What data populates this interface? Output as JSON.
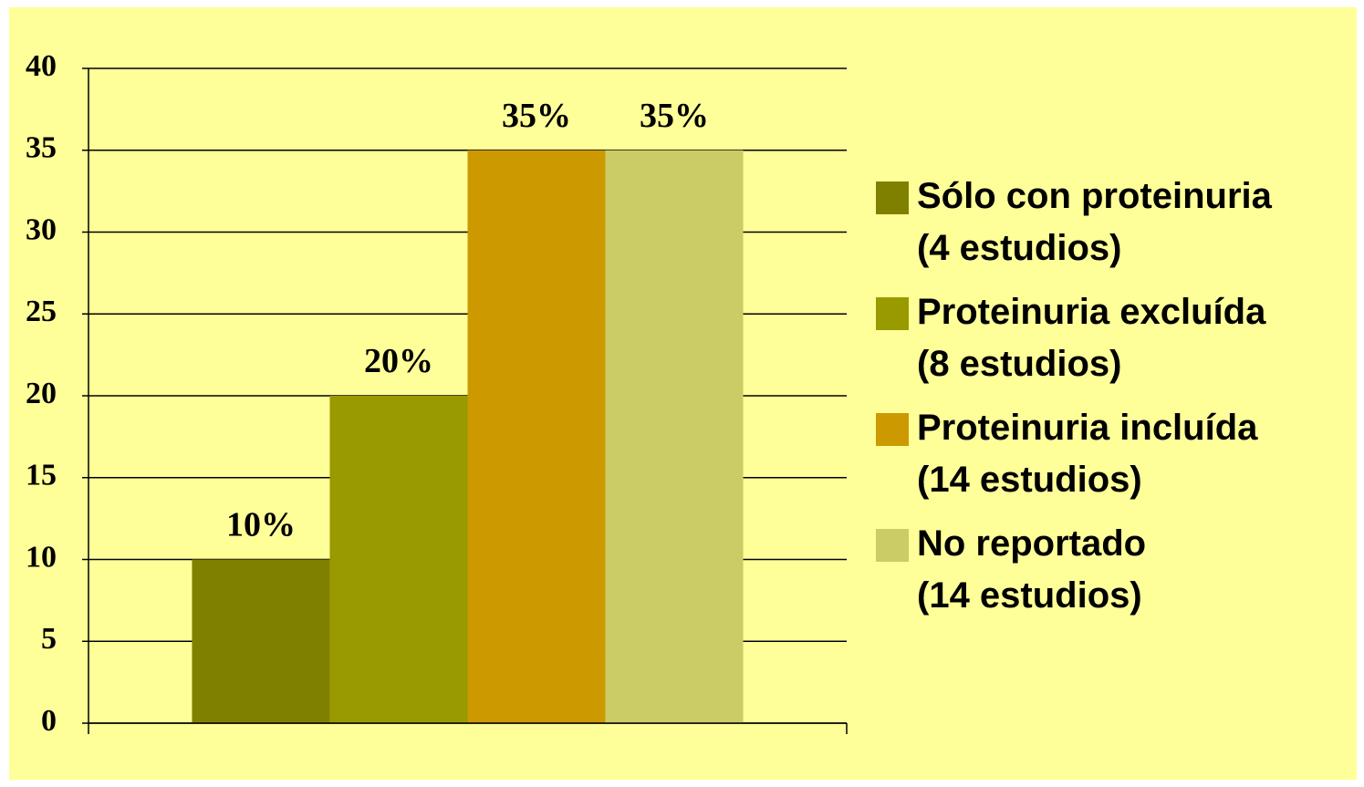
{
  "chart_data": {
    "type": "bar",
    "categories": [
      null
    ],
    "series": [
      {
        "name": "Sólo con proteinuria\n(4 estudios)",
        "color": "#808000",
        "values": [
          10
        ],
        "value_labels": [
          "10%"
        ]
      },
      {
        "name": "Proteinuria excluída\n(8 estudios)",
        "color": "#999900",
        "values": [
          20
        ],
        "value_labels": [
          "20%"
        ]
      },
      {
        "name": "Proteinuria incluída\n(14 estudios)",
        "color": "#CC9900",
        "values": [
          35
        ],
        "value_labels": [
          "35%"
        ]
      },
      {
        "name": "No reportado\n(14 estudios)",
        "color": "#CCCC66",
        "values": [
          35
        ],
        "value_labels": [
          "35%"
        ]
      }
    ],
    "ylim": [
      0,
      40
    ],
    "yticks": [
      0,
      5,
      10,
      15,
      20,
      25,
      30,
      35,
      40
    ],
    "grid": true,
    "legend": "right"
  }
}
